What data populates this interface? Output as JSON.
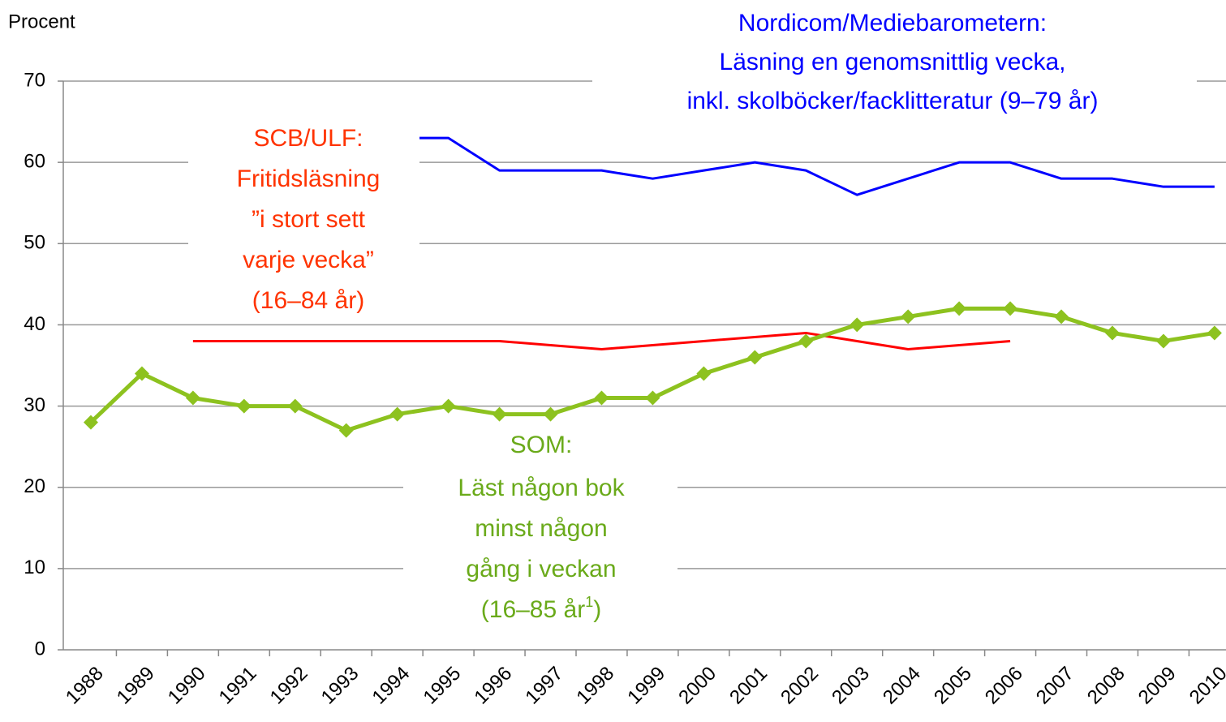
{
  "chart_data": {
    "type": "line",
    "y_axis_label": "Procent",
    "categories": [
      "1988",
      "1989",
      "1990",
      "1991",
      "1992",
      "1993",
      "1994",
      "1995",
      "1996",
      "1997",
      "1998",
      "1999",
      "2000",
      "2001",
      "2002",
      "2003",
      "2004",
      "2005",
      "2006",
      "2007",
      "2008",
      "2009",
      "2010"
    ],
    "series": [
      {
        "color": "#0000ff",
        "values": [
          null,
          null,
          null,
          null,
          null,
          null,
          63,
          63,
          59,
          59,
          59,
          58,
          59,
          60,
          59,
          56,
          58,
          60,
          60,
          58,
          58,
          57,
          57
        ]
      },
      {
        "color": "#ff0000",
        "values": [
          null,
          null,
          38,
          38,
          38,
          38,
          38,
          38,
          38,
          37.5,
          37,
          37.5,
          38,
          38.5,
          39,
          38,
          37,
          37.5,
          38,
          null,
          null,
          null,
          null
        ]
      },
      {
        "color": "#8dc21f",
        "marker": "diamond",
        "values": [
          28,
          34,
          31,
          30,
          30,
          27,
          29,
          30,
          29,
          29,
          31,
          31,
          34,
          36,
          38,
          40,
          41,
          42,
          42,
          41,
          39,
          38,
          39
        ]
      }
    ],
    "ylim": [
      0,
      70
    ],
    "yticks": [
      0,
      10,
      20,
      30,
      40,
      50,
      60,
      70
    ],
    "grid": true,
    "annotations": [
      {
        "color": "#0000ff",
        "lines": [
          "Nordicom/Mediebarometern:",
          "Läsning en genomsnittlig vecka,",
          "inkl. skolböcker/facklitteratur (9–79 år)"
        ]
      },
      {
        "color": "#ff3300",
        "lines": [
          "SCB/ULF:",
          "Fritidsläsning",
          "”i stort sett",
          "varje vecka”",
          "(16–84 år)"
        ]
      },
      {
        "color": "#6aaa1a",
        "lines": [
          "SOM:",
          "Läst någon bok",
          "minst någon",
          "gång i veckan"
        ],
        "last_line": [
          "(16–85 år",
          "1",
          ")"
        ]
      }
    ]
  }
}
